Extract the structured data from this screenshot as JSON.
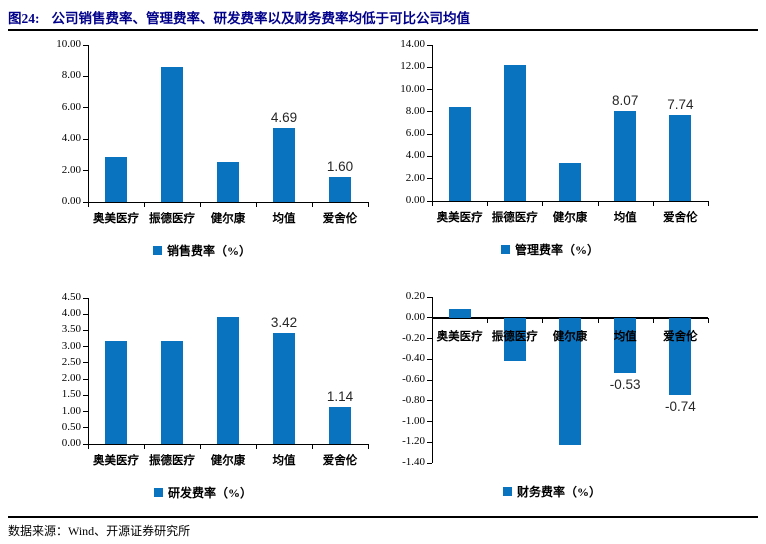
{
  "figure": {
    "label": "图24:",
    "title": "公司销售费率、管理费率、研发费率以及财务费率均低于可比公司均值",
    "source": "数据来源：Wind、开源证券研究所"
  },
  "colors": {
    "bar": "#0a73c0",
    "title": "#00008B",
    "axis": "#000000",
    "value_label": "#262626"
  },
  "chart_data": [
    {
      "type": "bar",
      "name": "sales-expense-ratio",
      "legend": "销售费率（%）",
      "legend_position": "bottom",
      "grid": false,
      "categories": [
        "奥美医疗",
        "振德医疗",
        "健尔康",
        "均值",
        "爱舍伦"
      ],
      "values": [
        2.87,
        8.62,
        2.55,
        4.69,
        1.6
      ],
      "data_labels": [
        null,
        null,
        null,
        "4.69",
        "1.60"
      ],
      "ylim": [
        0,
        10
      ],
      "ystep": 2
    },
    {
      "type": "bar",
      "name": "admin-expense-ratio",
      "legend": "管理费率（%）",
      "legend_position": "bottom",
      "grid": false,
      "categories": [
        "奥美医疗",
        "振德医疗",
        "健尔康",
        "均值",
        "爱舍伦"
      ],
      "values": [
        8.45,
        12.2,
        3.45,
        8.07,
        7.74
      ],
      "data_labels": [
        null,
        null,
        null,
        "8.07",
        "7.74"
      ],
      "ylim": [
        0,
        14
      ],
      "ystep": 2
    },
    {
      "type": "bar",
      "name": "rd-expense-ratio",
      "legend": "研发费率（%）",
      "legend_position": "bottom",
      "grid": false,
      "categories": [
        "奥美医疗",
        "振德医疗",
        "健尔康",
        "均值",
        "爱舍伦"
      ],
      "values": [
        3.19,
        3.16,
        3.9,
        3.42,
        1.14
      ],
      "data_labels": [
        null,
        null,
        null,
        "3.42",
        "1.14"
      ],
      "ylim": [
        0,
        4.5
      ],
      "ystep": 0.5
    },
    {
      "type": "bar",
      "name": "finance-expense-ratio",
      "legend": "财务费率（%）",
      "legend_position": "bottom",
      "grid": false,
      "categories": [
        "奥美医疗",
        "振德医疗",
        "健尔康",
        "均值",
        "爱舍伦"
      ],
      "values": [
        0.08,
        -0.42,
        -1.23,
        -0.53,
        -0.74
      ],
      "data_labels": [
        null,
        null,
        null,
        "-0.53",
        "-0.74"
      ],
      "ylim": [
        -1.4,
        0.2
      ],
      "ystep": 0.2
    }
  ]
}
